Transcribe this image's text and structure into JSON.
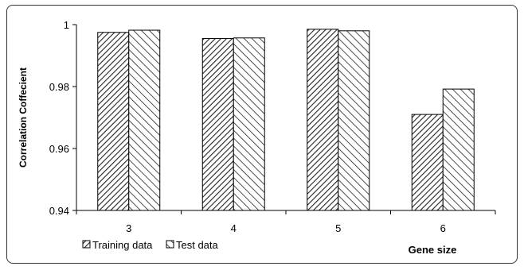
{
  "chart_data": {
    "type": "bar",
    "categories": [
      "3",
      "4",
      "5",
      "6"
    ],
    "series": [
      {
        "name": "Training data",
        "values": [
          0.9975,
          0.9955,
          0.9985,
          0.971
        ],
        "pattern": "dense-diagonal"
      },
      {
        "name": "Test data",
        "values": [
          0.9982,
          0.9957,
          0.998,
          0.9792
        ],
        "pattern": "sparse-backslash"
      }
    ],
    "title": "",
    "xlabel": "Gene size",
    "ylabel": "Correlation Coffecient",
    "ylim": [
      0.94,
      1.0
    ],
    "yticks": [
      "0.94",
      "0.96",
      "0.98",
      "1"
    ],
    "ytick_values": [
      0.94,
      0.96,
      0.98,
      1.0
    ],
    "grid": false,
    "legend_position": "bottom"
  }
}
